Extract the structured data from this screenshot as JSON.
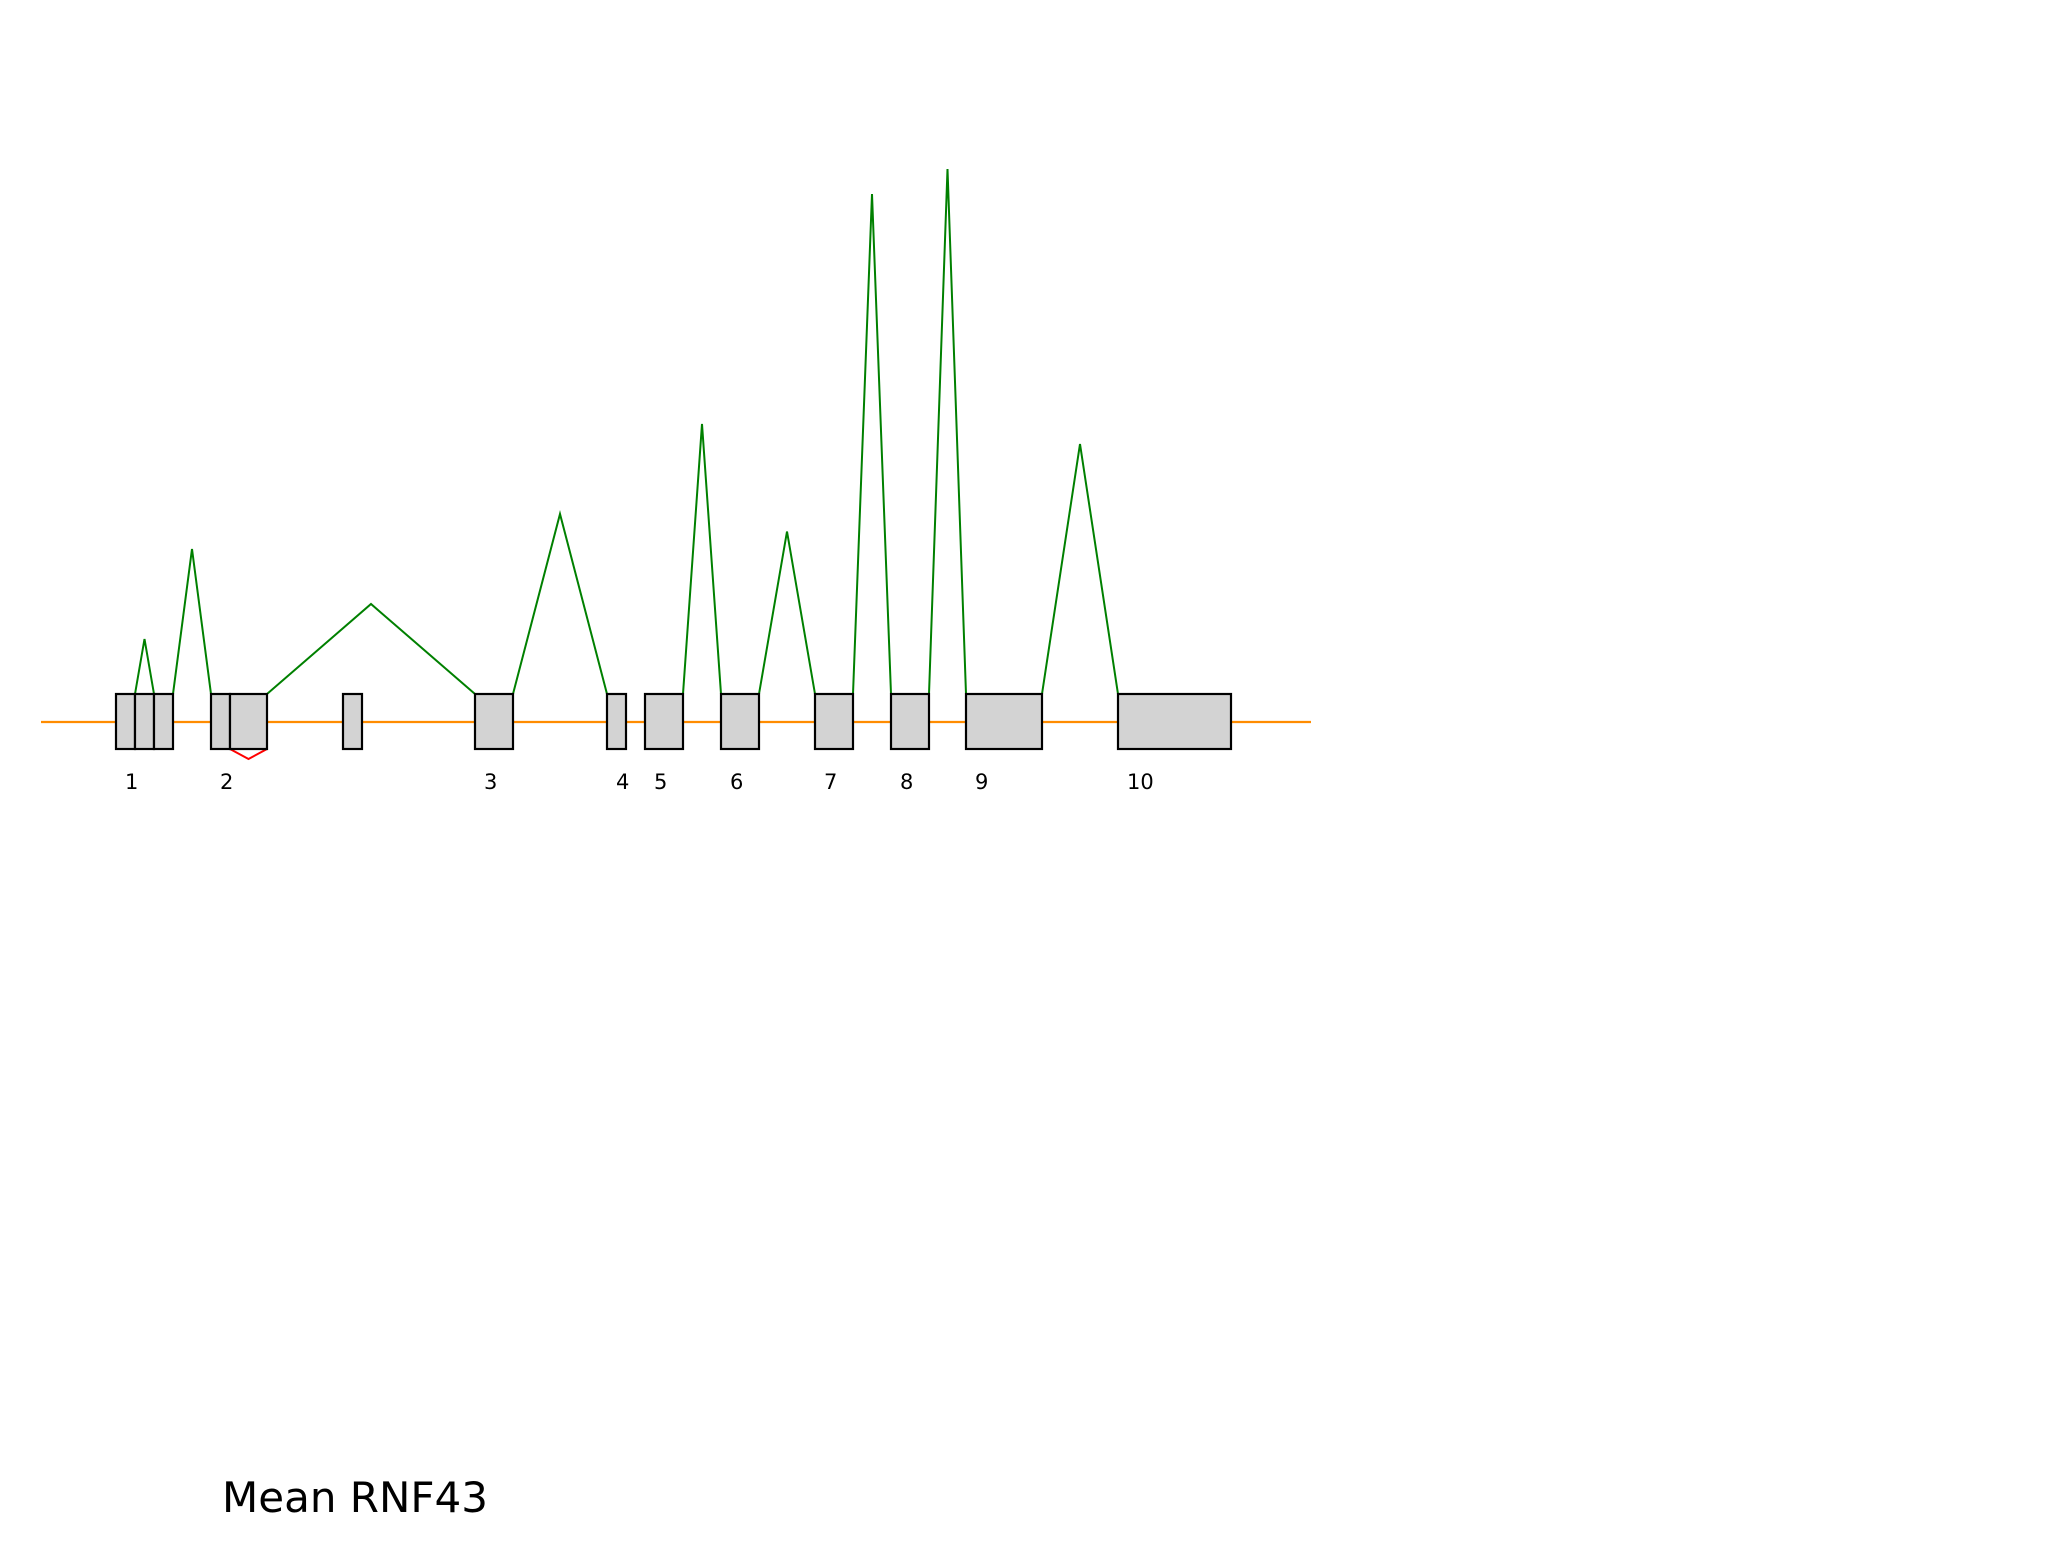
{
  "chart_data": {
    "type": "sashimi",
    "title": "Mean RNF43",
    "axis_range_x": [
      0,
      1270
    ],
    "axis_range_y": [
      0,
      1000
    ],
    "colors": {
      "intron_line": "#ff8c00",
      "junction_up": "#008000",
      "junction_down": "#ff0000",
      "exon_fill": "#d3d3d3",
      "exon_edge": "#000000"
    },
    "backbone": {
      "start": 0,
      "end": 1270
    },
    "exons": [
      {
        "start": 75,
        "end": 94,
        "label": "1"
      },
      {
        "start": 94,
        "end": 113,
        "label": ""
      },
      {
        "start": 113,
        "end": 132,
        "label": ""
      },
      {
        "start": 170,
        "end": 189,
        "label": "2"
      },
      {
        "start": 189,
        "end": 226,
        "label": ""
      },
      {
        "start": 302,
        "end": 321,
        "label": ""
      },
      {
        "start": 434,
        "end": 472,
        "label": "3"
      },
      {
        "start": 566,
        "end": 585,
        "label": "4"
      },
      {
        "start": 604,
        "end": 642,
        "label": "5"
      },
      {
        "start": 680,
        "end": 718,
        "label": "6"
      },
      {
        "start": 774,
        "end": 812,
        "label": "7"
      },
      {
        "start": 850,
        "end": 888,
        "label": "8"
      },
      {
        "start": 925,
        "end": 1001,
        "label": "9"
      },
      {
        "start": 1077,
        "end": 1190,
        "label": "10"
      }
    ],
    "junctions": [
      {
        "start": 94,
        "end": 113,
        "height": 110,
        "side": "up"
      },
      {
        "start": 132,
        "end": 170,
        "height": 290,
        "side": "up"
      },
      {
        "start": 226,
        "end": 434,
        "height": 180,
        "side": "up"
      },
      {
        "start": 472,
        "end": 566,
        "height": 360,
        "side": "up"
      },
      {
        "start": 642,
        "end": 680,
        "height": 540,
        "side": "up"
      },
      {
        "start": 718,
        "end": 774,
        "height": 325,
        "side": "up"
      },
      {
        "start": 812,
        "end": 850,
        "height": 1000,
        "side": "up"
      },
      {
        "start": 888,
        "end": 925,
        "height": 1050,
        "side": "up"
      },
      {
        "start": 1001,
        "end": 1077,
        "height": 500,
        "side": "up"
      },
      {
        "start": 189,
        "end": 226,
        "height": 40,
        "side": "down"
      }
    ]
  }
}
